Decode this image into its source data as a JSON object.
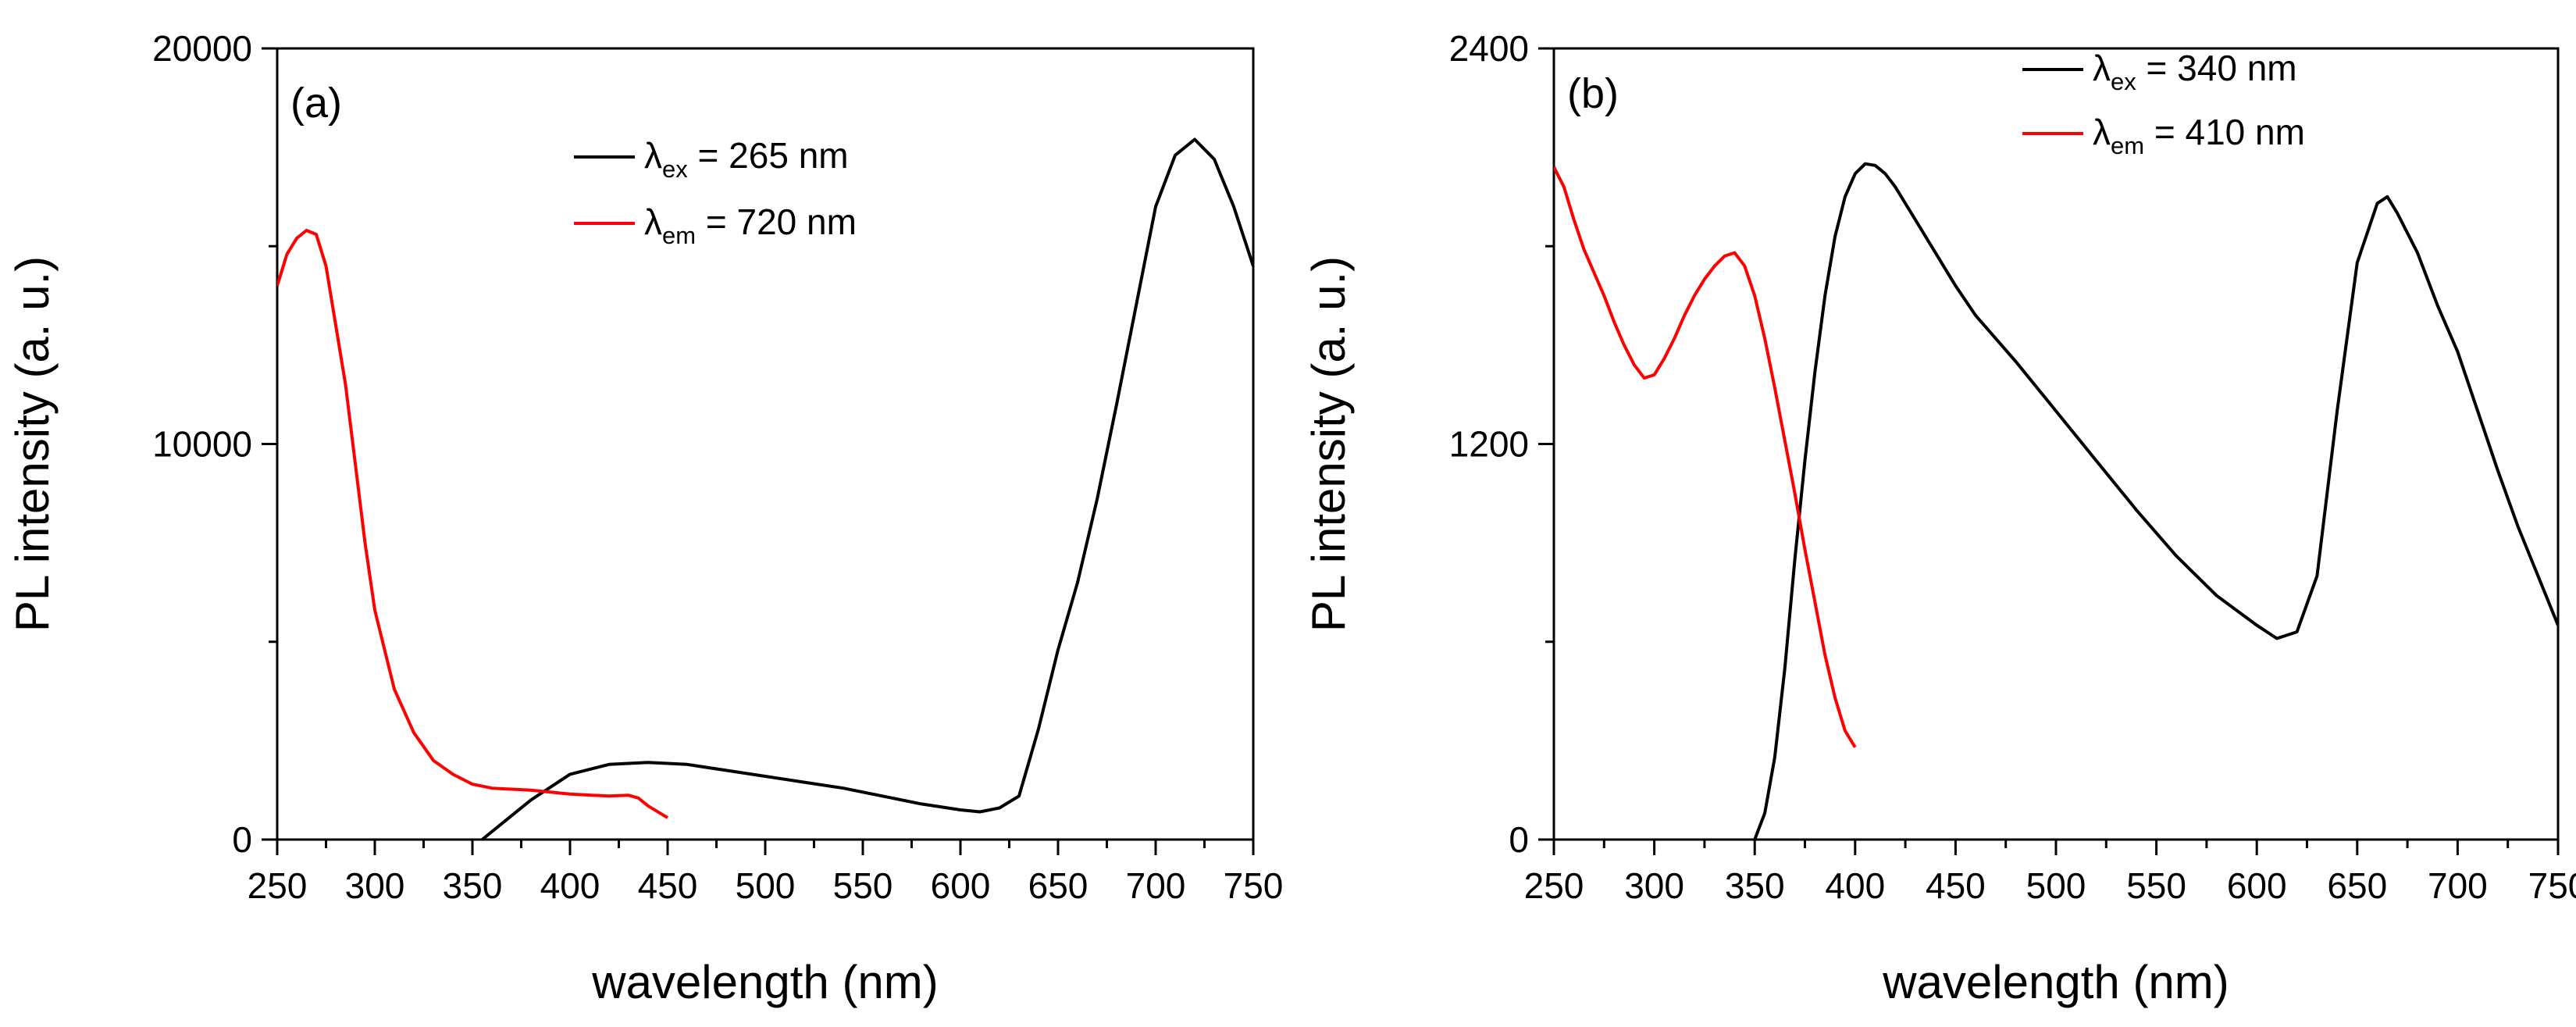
{
  "chart_data": [
    {
      "type": "line",
      "panel_label": "(a)",
      "xlabel": "wavelength (nm)",
      "ylabel": "PL intensity (a. u.)",
      "xlim": [
        250,
        750
      ],
      "ylim": [
        0,
        20000
      ],
      "xticks": [
        "250",
        "300",
        "350",
        "400",
        "450",
        "500",
        "550",
        "600",
        "650",
        "700",
        "750"
      ],
      "yticks": [
        "0",
        "10000",
        "20000"
      ],
      "legend_position": "top-center",
      "series": [
        {
          "name": "λex = 265 nm",
          "symbol": "λ",
          "sub": "ex",
          "rest": " = 265 nm",
          "color": "#000000",
          "x": [
            355,
            365,
            380,
            400,
            420,
            440,
            460,
            480,
            500,
            520,
            540,
            560,
            580,
            600,
            610,
            620,
            630,
            640,
            650,
            660,
            670,
            680,
            690,
            700,
            710,
            720,
            730,
            740,
            750
          ],
          "y": [
            0,
            400,
            1000,
            1650,
            1900,
            1950,
            1900,
            1750,
            1600,
            1450,
            1300,
            1100,
            900,
            750,
            700,
            800,
            1100,
            2800,
            4800,
            6500,
            8600,
            11000,
            13500,
            16000,
            17300,
            17700,
            17200,
            16000,
            14500
          ]
        },
        {
          "name": "λem = 720 nm",
          "symbol": "λ",
          "sub": "em",
          "rest": " = 720 nm",
          "color": "#ff0000",
          "x": [
            250,
            255,
            260,
            265,
            270,
            275,
            280,
            285,
            290,
            295,
            300,
            310,
            320,
            330,
            340,
            350,
            360,
            380,
            400,
            420,
            430,
            435,
            440,
            450
          ],
          "y": [
            14000,
            14800,
            15200,
            15400,
            15300,
            14500,
            13000,
            11500,
            9500,
            7500,
            5800,
            3800,
            2700,
            2000,
            1650,
            1400,
            1300,
            1250,
            1150,
            1100,
            1120,
            1050,
            850,
            550
          ]
        }
      ]
    },
    {
      "type": "line",
      "panel_label": "(b)",
      "xlabel": "wavelength (nm)",
      "ylabel": "PL intensity (a. u.)",
      "xlim": [
        250,
        750
      ],
      "ylim": [
        0,
        2400
      ],
      "xticks": [
        "250",
        "300",
        "350",
        "400",
        "450",
        "500",
        "550",
        "600",
        "650",
        "700",
        "750"
      ],
      "yticks": [
        "0",
        "1200",
        "2400"
      ],
      "legend_position": "top-center",
      "series": [
        {
          "name": "λex = 340 nm",
          "symbol": "λ",
          "sub": "ex",
          "rest": " = 340 nm",
          "color": "#000000",
          "x": [
            350,
            355,
            360,
            365,
            370,
            375,
            380,
            385,
            390,
            395,
            400,
            405,
            410,
            415,
            420,
            430,
            440,
            450,
            460,
            480,
            500,
            520,
            540,
            560,
            580,
            600,
            610,
            620,
            630,
            640,
            650,
            660,
            665,
            670,
            680,
            690,
            700,
            710,
            720,
            730,
            740,
            750
          ],
          "y": [
            0,
            80,
            250,
            520,
            850,
            1150,
            1420,
            1650,
            1830,
            1950,
            2020,
            2050,
            2045,
            2020,
            1980,
            1880,
            1780,
            1680,
            1590,
            1450,
            1300,
            1150,
            1000,
            860,
            740,
            650,
            610,
            630,
            800,
            1300,
            1750,
            1930,
            1950,
            1900,
            1780,
            1620,
            1480,
            1300,
            1120,
            950,
            800,
            650
          ]
        },
        {
          "name": "λem = 410 nm",
          "symbol": "λ",
          "sub": "em",
          "rest": " = 410 nm",
          "color": "#ff0000",
          "x": [
            250,
            255,
            260,
            265,
            270,
            275,
            280,
            285,
            290,
            295,
            300,
            305,
            310,
            315,
            320,
            325,
            330,
            335,
            340,
            345,
            350,
            355,
            360,
            365,
            370,
            375,
            380,
            385,
            390,
            395,
            400
          ],
          "y": [
            2040,
            1980,
            1880,
            1790,
            1720,
            1650,
            1570,
            1500,
            1440,
            1400,
            1410,
            1460,
            1520,
            1590,
            1650,
            1700,
            1740,
            1770,
            1780,
            1740,
            1650,
            1520,
            1370,
            1210,
            1050,
            880,
            720,
            560,
            430,
            330,
            280
          ]
        }
      ]
    }
  ]
}
